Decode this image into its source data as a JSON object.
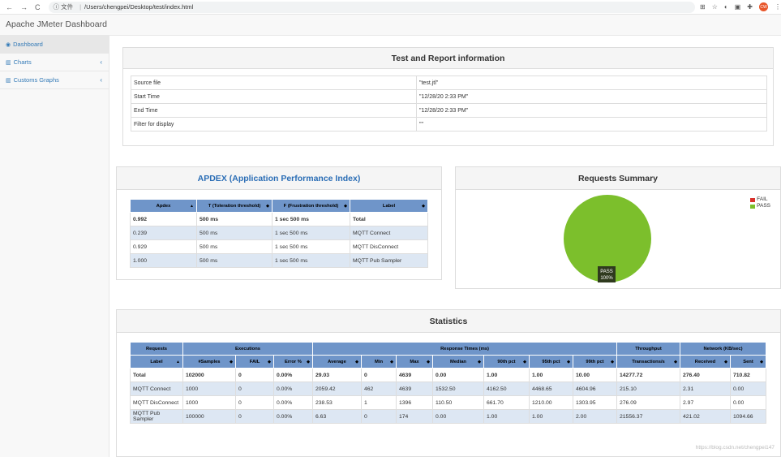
{
  "browser": {
    "back": "←",
    "forward": "→",
    "reload": "C",
    "info": "ⓘ 文件",
    "url": "/Users/chengpei/Desktop/test/index.html",
    "avatar": "CW"
  },
  "app": {
    "brand": "Apache JMeter Dashboard"
  },
  "sidebar": {
    "items": [
      {
        "label": "Dashboard",
        "icon": "dashboard-icon"
      },
      {
        "label": "Charts",
        "icon": "bar-chart-icon"
      },
      {
        "label": "Customs Graphs",
        "icon": "bar-chart-icon"
      }
    ]
  },
  "test_info": {
    "title": "Test and Report information",
    "rows": [
      {
        "key": "Source file",
        "value": "\"test.jtl\""
      },
      {
        "key": "Start Time",
        "value": "\"12/28/20 2:33 PM\""
      },
      {
        "key": "End Time",
        "value": "\"12/28/20 2:33 PM\""
      },
      {
        "key": "Filter for display",
        "value": "\"\""
      }
    ]
  },
  "apdex": {
    "title": "APDEX (Application Performance Index)",
    "headers": [
      "Apdex",
      "T (Toleration threshold)",
      "F (Frustration threshold)",
      "Label"
    ],
    "rows": [
      [
        "0.992",
        "500 ms",
        "1 sec 500 ms",
        "Total"
      ],
      [
        "0.239",
        "500 ms",
        "1 sec 500 ms",
        "MQTT Connect"
      ],
      [
        "0.929",
        "500 ms",
        "1 sec 500 ms",
        "MQTT DisConnect"
      ],
      [
        "1.000",
        "500 ms",
        "1 sec 500 ms",
        "MQTT Pub Sampler"
      ]
    ]
  },
  "summary": {
    "title": "Requests Summary",
    "legend": [
      {
        "label": "FAIL",
        "color": "#d9322c"
      },
      {
        "label": "PASS",
        "color": "#7cbf2c"
      }
    ],
    "slice_label": "PASS",
    "slice_pct": "100%"
  },
  "chart_data": {
    "type": "pie",
    "categories": [
      "FAIL",
      "PASS"
    ],
    "values": [
      0,
      100
    ],
    "title": "Requests Summary"
  },
  "stats": {
    "title": "Statistics",
    "groups": [
      {
        "label": "Requests",
        "span": 1
      },
      {
        "label": "Executions",
        "span": 3
      },
      {
        "label": "Response Times (ms)",
        "span": 7
      },
      {
        "label": "Throughput",
        "span": 1
      },
      {
        "label": "Network (KB/sec)",
        "span": 2
      }
    ],
    "headers": [
      "Label",
      "#Samples",
      "FAIL",
      "Error %",
      "Average",
      "Min",
      "Max",
      "Median",
      "90th pct",
      "95th pct",
      "99th pct",
      "Transactions/s",
      "Received",
      "Sent"
    ],
    "rows": [
      [
        "Total",
        "102000",
        "0",
        "0.00%",
        "29.03",
        "0",
        "4639",
        "0.00",
        "1.00",
        "1.00",
        "10.00",
        "14277.72",
        "276.40",
        "710.82"
      ],
      [
        "MQTT Connect",
        "1000",
        "0",
        "0.00%",
        "2059.42",
        "462",
        "4639",
        "1532.50",
        "4162.50",
        "4468.65",
        "4604.96",
        "215.10",
        "2.31",
        "0.00"
      ],
      [
        "MQTT DisConnect",
        "1000",
        "0",
        "0.00%",
        "238.53",
        "1",
        "1396",
        "110.50",
        "661.70",
        "1210.00",
        "1303.95",
        "276.09",
        "2.97",
        "0.00"
      ],
      [
        "MQTT Pub Sampler",
        "100000",
        "0",
        "0.00%",
        "6.63",
        "0",
        "174",
        "0.00",
        "1.00",
        "1.00",
        "2.00",
        "21556.37",
        "421.02",
        "1094.66"
      ]
    ]
  },
  "watermark": "https://blog.csdn.net/chengpei147"
}
